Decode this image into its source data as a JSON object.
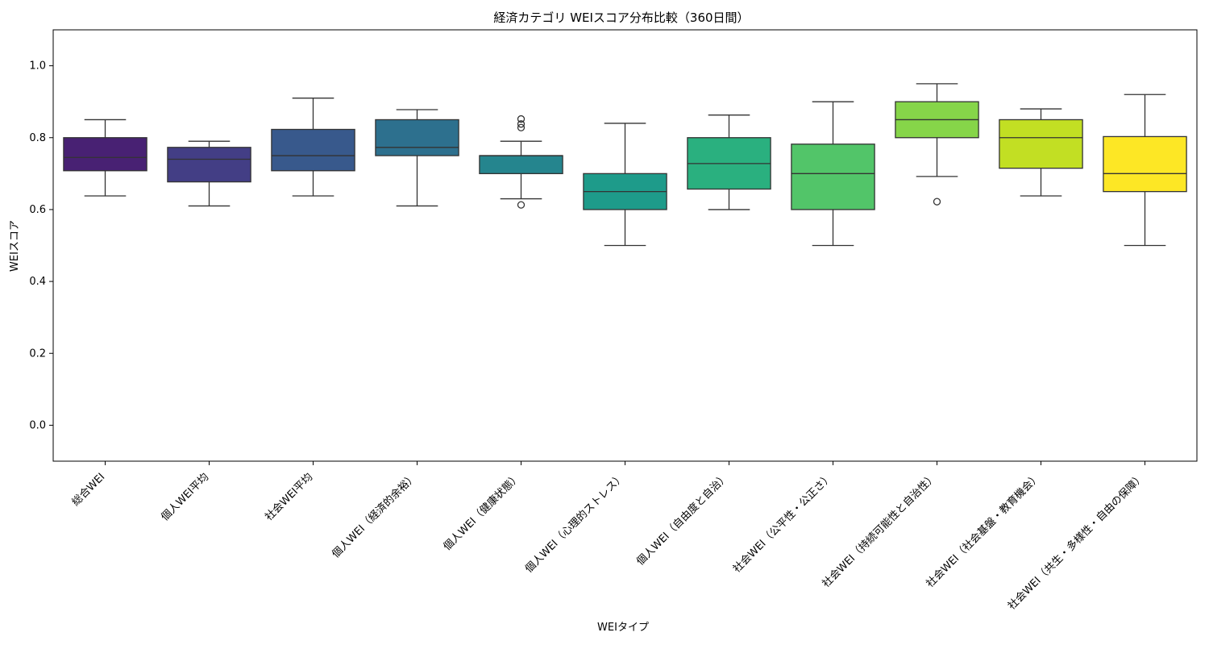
{
  "chart_data": {
    "type": "box",
    "title": "経済カテゴリ WEIスコア分布比較（360日間）",
    "xlabel": "WEIタイプ",
    "ylabel": "WEIスコア",
    "ylim": [
      -0.1,
      1.1
    ],
    "yticks": [
      0.0,
      0.2,
      0.4,
      0.6,
      0.8,
      1.0
    ],
    "grid": false,
    "legend": "none",
    "categories": [
      "総合WEI",
      "個人WEI平均",
      "社会WEI平均",
      "個人WEI（経済的余裕）",
      "個人WEI（健康状態）",
      "個人WEI（心理的ストレス）",
      "個人WEI（自由度と自治）",
      "社会WEI（公平性・公正さ）",
      "社会WEI（持続可能性と自治性）",
      "社会WEI（社会基盤・教育機会）",
      "社会WEI（共生・多様性・自由の保障）"
    ],
    "boxes": [
      {
        "whislo": 0.638,
        "q1": 0.708,
        "med": 0.745,
        "q3": 0.8,
        "whishi": 0.85,
        "fliers": [],
        "color": "#482173"
      },
      {
        "whislo": 0.61,
        "q1": 0.677,
        "med": 0.74,
        "q3": 0.773,
        "whishi": 0.79,
        "fliers": [],
        "color": "#433e85"
      },
      {
        "whislo": 0.638,
        "q1": 0.708,
        "med": 0.75,
        "q3": 0.823,
        "whishi": 0.91,
        "fliers": [],
        "color": "#38598c"
      },
      {
        "whislo": 0.61,
        "q1": 0.75,
        "med": 0.773,
        "q3": 0.85,
        "whishi": 0.878,
        "fliers": [],
        "color": "#2d708e"
      },
      {
        "whislo": 0.63,
        "q1": 0.7,
        "med": 0.75,
        "q3": 0.75,
        "whishi": 0.79,
        "fliers": [
          0.613,
          0.828,
          0.838,
          0.852
        ],
        "color": "#25858e"
      },
      {
        "whislo": 0.5,
        "q1": 0.6,
        "med": 0.65,
        "q3": 0.7,
        "whishi": 0.84,
        "fliers": [],
        "color": "#1e9b8a"
      },
      {
        "whislo": 0.6,
        "q1": 0.657,
        "med": 0.728,
        "q3": 0.8,
        "whishi": 0.863,
        "fliers": [],
        "color": "#2ab07f"
      },
      {
        "whislo": 0.5,
        "q1": 0.6,
        "med": 0.7,
        "q3": 0.782,
        "whishi": 0.9,
        "fliers": [],
        "color": "#52c569"
      },
      {
        "whislo": 0.692,
        "q1": 0.8,
        "med": 0.85,
        "q3": 0.9,
        "whishi": 0.95,
        "fliers": [
          0.622
        ],
        "color": "#86d549"
      },
      {
        "whislo": 0.638,
        "q1": 0.715,
        "med": 0.8,
        "q3": 0.85,
        "whishi": 0.88,
        "fliers": [],
        "color": "#c2df23"
      },
      {
        "whislo": 0.5,
        "q1": 0.65,
        "med": 0.7,
        "q3": 0.803,
        "whishi": 0.92,
        "fliers": [],
        "color": "#fde725"
      }
    ]
  }
}
